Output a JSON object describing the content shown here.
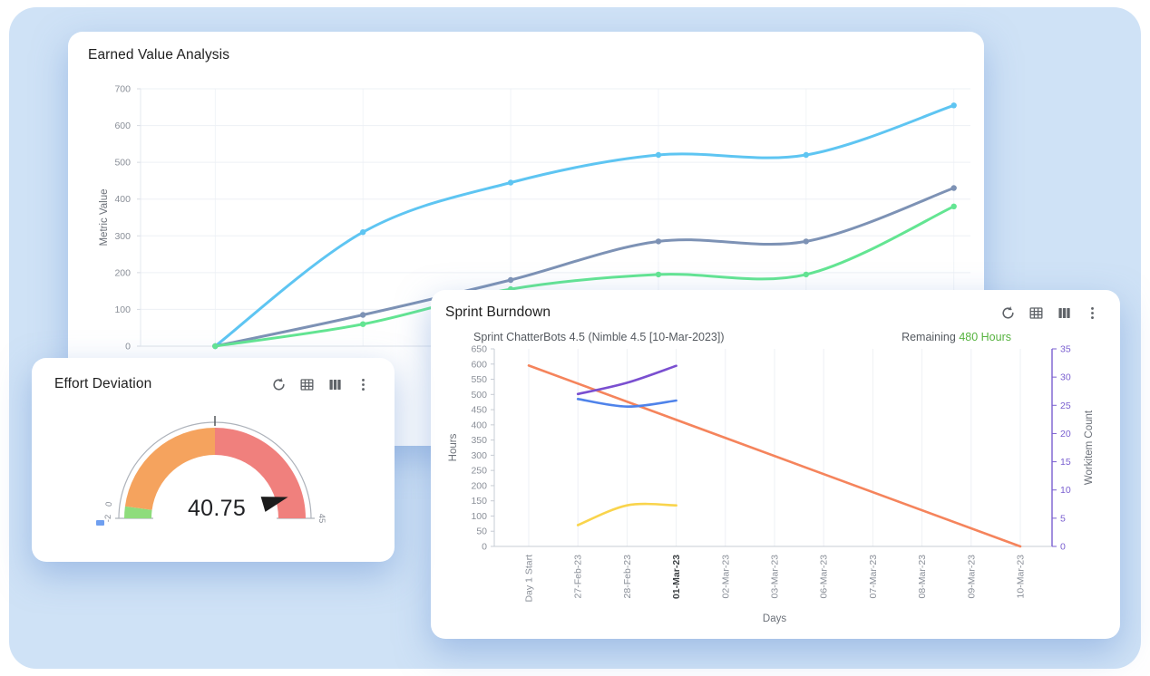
{
  "window": {
    "background_color": "#cfe2f6",
    "card_color": "#ffffff"
  },
  "cards": {
    "eva": {
      "title": "Earned Value Analysis"
    },
    "gauge": {
      "title": "Effort Deviation",
      "value_display": "40.75"
    },
    "burndown": {
      "title": "Sprint Burndown",
      "subtitle": "Sprint ChatterBots 4.5 (Nimble 4.5 [10-Mar-2023])",
      "remaining_label": "Remaining",
      "remaining_value": "480 Hours",
      "remaining_value_color": "#56b33f"
    }
  },
  "toolbar": {
    "icons": [
      {
        "name": "refresh-icon"
      },
      {
        "name": "table-view-icon"
      },
      {
        "name": "column-view-icon"
      },
      {
        "name": "more-menu-icon"
      }
    ],
    "icon_color": "#5f6368"
  },
  "chart_data": [
    {
      "id": "eva",
      "type": "line",
      "title": "Earned Value Analysis",
      "ylabel": "Metric Value",
      "ylim": [
        0,
        700
      ],
      "y_ticks": [
        0,
        100,
        200,
        300,
        400,
        500,
        600,
        700
      ],
      "x_axis_labels_visible": false,
      "grid": true,
      "series": [
        {
          "name": "line-sky-blue",
          "color": "#5ec5f2",
          "values": [
            0,
            310,
            445,
            520,
            520,
            655
          ]
        },
        {
          "name": "line-slate",
          "color": "#7d92b5",
          "values": [
            0,
            85,
            180,
            285,
            285,
            430
          ]
        },
        {
          "name": "line-green",
          "color": "#63e592",
          "values": [
            0,
            60,
            155,
            195,
            195,
            380
          ]
        }
      ]
    },
    {
      "id": "burndown",
      "type": "line",
      "title": "Sprint Burndown",
      "subtitle": "Sprint ChatterBots 4.5 (Nimble 4.5 [10-Mar-2023])",
      "xlabel": "Days",
      "categories": [
        "Day 1 Start",
        "27-Feb-23",
        "28-Feb-23",
        "01-Mar-23",
        "02-Mar-23",
        "03-Mar-23",
        "06-Mar-23",
        "07-Mar-23",
        "08-Mar-23",
        "09-Mar-23",
        "10-Mar-23"
      ],
      "emphasized_category": "01-Mar-23",
      "axes": {
        "left": {
          "label": "Hours",
          "lim": [
            0,
            650
          ],
          "tick_step": 50,
          "color": "#8a8f98"
        },
        "right": {
          "label": "Workitem Count",
          "lim": [
            0,
            35
          ],
          "tick_step": 5,
          "color": "#7a5fd0"
        }
      },
      "series": [
        {
          "name": "ideal-burndown",
          "axis": "left",
          "color": "#f5845c",
          "straight": true,
          "points": [
            [
              0,
              595
            ],
            [
              10,
              0
            ]
          ]
        },
        {
          "name": "remaining-hours",
          "axis": "left",
          "color": "#4f83ea",
          "points": [
            [
              1,
              485
            ],
            [
              2,
              460
            ],
            [
              3,
              480
            ]
          ]
        },
        {
          "name": "workitem-count",
          "axis": "right",
          "color": "#7a4fd0",
          "points": [
            [
              1,
              27
            ],
            [
              2,
              29
            ],
            [
              3,
              32
            ]
          ]
        },
        {
          "name": "completed-hours",
          "axis": "left",
          "color": "#f9d44c",
          "points": [
            [
              1,
              70
            ],
            [
              2,
              135
            ],
            [
              3,
              135
            ]
          ]
        }
      ],
      "annotation": {
        "remaining_label": "Remaining",
        "remaining_value": "480 Hours"
      }
    },
    {
      "id": "gauge",
      "type": "gauge",
      "title": "Effort Deviation",
      "min": -2,
      "max": 45,
      "value": 40.75,
      "segments": [
        {
          "from": -2,
          "to": 0,
          "color": "#8edc7c"
        },
        {
          "from": 0,
          "to": 21.5,
          "color": "#f5a35e"
        },
        {
          "from": 21.5,
          "to": 45,
          "color": "#f0807d"
        }
      ],
      "scale_labels": [
        {
          "value": -2,
          "text": "-2"
        },
        {
          "value": 0,
          "text": "0"
        },
        {
          "value": 45,
          "text": "45"
        }
      ],
      "needle_color": "#1c1c1c",
      "threshold_marker_color": "#6f9ff0"
    }
  ]
}
